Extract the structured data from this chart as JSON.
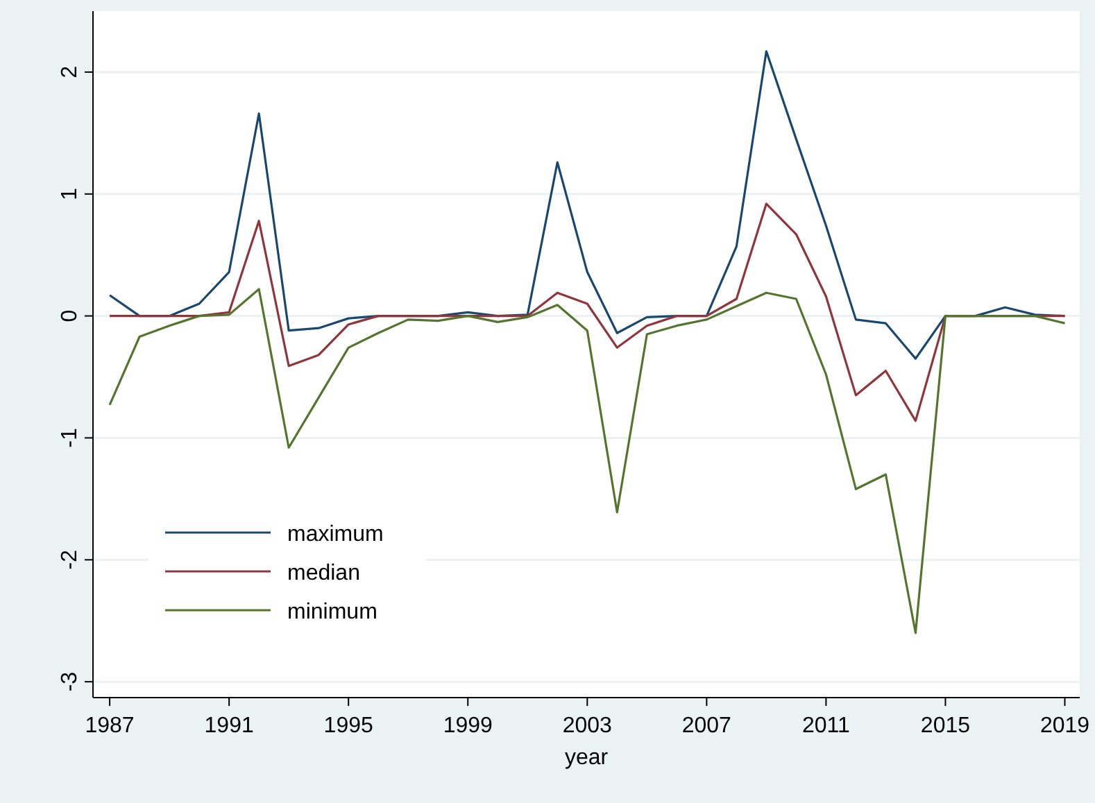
{
  "chart_data": {
    "type": "line",
    "xlabel": "year",
    "x": [
      1987,
      1988,
      1989,
      1990,
      1991,
      1992,
      1993,
      1994,
      1995,
      1996,
      1997,
      1998,
      1999,
      2000,
      2001,
      2002,
      2003,
      2004,
      2005,
      2006,
      2007,
      2008,
      2009,
      2010,
      2011,
      2012,
      2013,
      2014,
      2015,
      2016,
      2017,
      2018,
      2019
    ],
    "series": [
      {
        "name": "maximum",
        "color": "#1a476f",
        "values": [
          0.17,
          0,
          0,
          0.1,
          0.36,
          1.66,
          -0.12,
          -0.1,
          -0.02,
          0,
          0,
          0,
          0.03,
          0,
          0.01,
          1.26,
          0.36,
          -0.14,
          -0.01,
          0,
          0,
          0.57,
          2.17,
          1.45,
          0.74,
          -0.03,
          -0.06,
          -0.35,
          0,
          0,
          0.07,
          0.01,
          0
        ]
      },
      {
        "name": "median",
        "color": "#90353b",
        "values": [
          0,
          0,
          0,
          0,
          0.03,
          0.78,
          -0.41,
          -0.32,
          -0.07,
          0,
          0,
          0,
          0,
          0,
          0,
          0.19,
          0.1,
          -0.26,
          -0.08,
          0,
          0,
          0.14,
          0.92,
          0.67,
          0.16,
          -0.65,
          -0.45,
          -0.86,
          0,
          0,
          0,
          0,
          0
        ]
      },
      {
        "name": "minimum",
        "color": "#55752f",
        "values": [
          -0.73,
          -0.17,
          -0.08,
          0,
          0.01,
          0.22,
          -1.08,
          -0.67,
          -0.26,
          -0.14,
          -0.03,
          -0.04,
          0,
          -0.05,
          -0.01,
          0.09,
          -0.12,
          -1.61,
          -0.15,
          -0.08,
          -0.03,
          0.08,
          0.19,
          0.14,
          -0.48,
          -1.42,
          -1.3,
          -2.6,
          0,
          0,
          0,
          0,
          -0.06
        ]
      }
    ],
    "xlim": [
      1986.44,
      2019.5
    ],
    "xticks": [
      1987,
      1991,
      1995,
      1999,
      2003,
      2007,
      2011,
      2015,
      2019
    ],
    "ylim": [
      -3.13,
      2.5
    ],
    "yticks": [
      -3,
      -2,
      -1,
      0,
      1,
      2
    ],
    "grid": "y",
    "legend": "bottom left",
    "marker": "none",
    "line_style": "solid"
  }
}
